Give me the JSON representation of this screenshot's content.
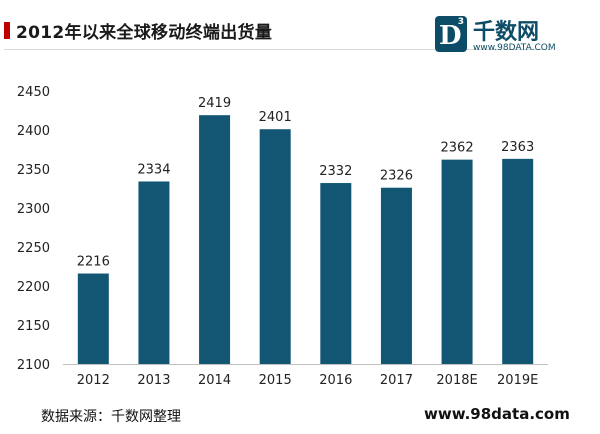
{
  "title": "2012年以来全球移动终端出货量",
  "logo": {
    "letter": "D",
    "superscript": "3",
    "name": "千数网",
    "url": "www.98DATA.COM"
  },
  "chart_data": {
    "type": "bar",
    "categories": [
      "2012",
      "2013",
      "2014",
      "2015",
      "2016",
      "2017",
      "2018E",
      "2019E"
    ],
    "values": [
      2216,
      2334,
      2419,
      2401,
      2332,
      2326,
      2362,
      2363
    ],
    "ylim": [
      2100,
      2450
    ],
    "yticks": [
      2100,
      2150,
      2200,
      2250,
      2300,
      2350,
      2400,
      2450
    ],
    "bar_color": "#125673",
    "data_labels": true,
    "grid": false
  },
  "footer": {
    "source": "数据来源：千数网整理",
    "url": "www.98data.com"
  }
}
